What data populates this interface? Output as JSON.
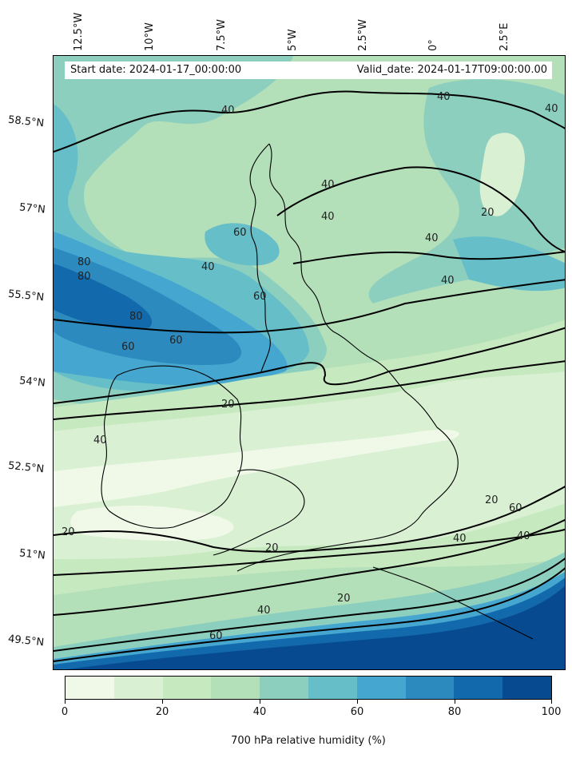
{
  "header": {
    "start_date": "Start date: 2024-01-17_00:00:00",
    "valid_date": "Valid_date: 2024-01-17T09:00:00.00"
  },
  "longitude_labels": [
    "12.5°W",
    "10°W",
    "7.5°W",
    "5°W",
    "2.5°W",
    "0°",
    "2.5°E"
  ],
  "latitude_labels": [
    "58.5°N",
    "57°N",
    "55.5°N",
    "54°N",
    "52.5°N",
    "51°N",
    "49.5°N"
  ],
  "contour_labels": [
    "40",
    "40",
    "40",
    "40",
    "20",
    "40",
    "60",
    "40",
    "40",
    "60",
    "80",
    "80",
    "60",
    "80",
    "60",
    "40",
    "20",
    "40",
    "20",
    "20",
    "40",
    "20",
    "40",
    "60",
    "20",
    "40",
    "60"
  ],
  "colorbar": {
    "label": "700 hPa relative humidity (%)",
    "ticks": [
      "0",
      "20",
      "40",
      "60",
      "80",
      "100"
    ],
    "colors": [
      "#f0f9e8",
      "#d9f0d3",
      "#c7e9c0",
      "#b3dfb9",
      "#8ccfbf",
      "#66bec9",
      "#45a6cf",
      "#2c8abe",
      "#1269ac",
      "#084a8f"
    ]
  }
}
